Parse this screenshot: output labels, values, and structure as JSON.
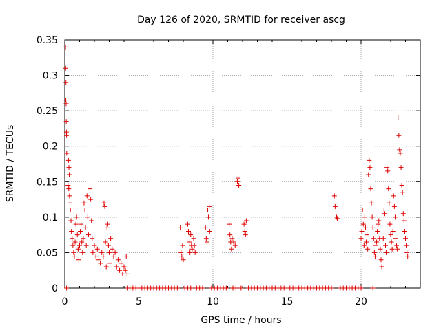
{
  "chart_data": {
    "type": "scatter",
    "title": "Day 126 of 2020, SRMTID for receiver ascg",
    "xlabel": "GPS time / hours",
    "ylabel": "SRMTID / TECUs",
    "xlim": [
      0,
      24
    ],
    "ylim": [
      0,
      0.35
    ],
    "x_ticks": [
      0,
      5,
      10,
      15,
      20
    ],
    "y_ticks": [
      0,
      0.05,
      0.1,
      0.15,
      0.2,
      0.25,
      0.3,
      0.35
    ],
    "x_tick_labels": [
      "0",
      "5",
      "10",
      "15",
      "20"
    ],
    "y_tick_labels": [
      "0",
      "0.05",
      "0.1",
      "0.15",
      "0.2",
      "0.25",
      "0.3",
      "0.35"
    ],
    "grid": true,
    "marker": "+",
    "color": "#dd0000",
    "series": [
      {
        "name": "SRMTID",
        "points": [
          [
            0.05,
            0.34
          ],
          [
            0.06,
            0.31
          ],
          [
            0.08,
            0.29
          ],
          [
            0.07,
            0.265
          ],
          [
            0.09,
            0.26
          ],
          [
            0.1,
            0.235
          ],
          [
            0.11,
            0.22
          ],
          [
            0.12,
            0.215
          ],
          [
            0.13,
            0.19
          ],
          [
            0.12,
            0.0
          ],
          [
            0.25,
            0.18
          ],
          [
            0.28,
            0.17
          ],
          [
            0.3,
            0.16
          ],
          [
            0.22,
            0.145
          ],
          [
            0.27,
            0.14
          ],
          [
            0.32,
            0.13
          ],
          [
            0.35,
            0.12
          ],
          [
            0.38,
            0.11
          ],
          [
            0.42,
            0.095
          ],
          [
            0.45,
            0.08
          ],
          [
            0.5,
            0.07
          ],
          [
            0.55,
            0.06
          ],
          [
            0.6,
            0.05
          ],
          [
            0.65,
            0.045
          ],
          [
            0.7,
            0.065
          ],
          [
            0.75,
            0.09
          ],
          [
            0.8,
            0.1
          ],
          [
            0.85,
            0.075
          ],
          [
            0.9,
            0.055
          ],
          [
            0.95,
            0.04
          ],
          [
            1.0,
            0.06
          ],
          [
            1.05,
            0.08
          ],
          [
            1.1,
            0.09
          ],
          [
            1.15,
            0.065
          ],
          [
            1.2,
            0.05
          ],
          [
            1.25,
            0.07
          ],
          [
            1.3,
            0.12
          ],
          [
            1.35,
            0.11
          ],
          [
            1.4,
            0.085
          ],
          [
            1.45,
            0.06
          ],
          [
            1.5,
            0.13
          ],
          [
            1.55,
            0.1
          ],
          [
            1.6,
            0.075
          ],
          [
            1.7,
            0.14
          ],
          [
            1.75,
            0.125
          ],
          [
            1.8,
            0.095
          ],
          [
            1.85,
            0.07
          ],
          [
            1.9,
            0.05
          ],
          [
            2.0,
            0.06
          ],
          [
            2.1,
            0.045
          ],
          [
            2.2,
            0.055
          ],
          [
            2.3,
            0.04
          ],
          [
            2.4,
            0.035
          ],
          [
            2.5,
            0.05
          ],
          [
            2.6,
            0.045
          ],
          [
            2.65,
            0.12
          ],
          [
            2.7,
            0.115
          ],
          [
            2.75,
            0.065
          ],
          [
            2.8,
            0.03
          ],
          [
            2.85,
            0.085
          ],
          [
            2.9,
            0.09
          ],
          [
            2.95,
            0.06
          ],
          [
            3.0,
            0.05
          ],
          [
            3.05,
            0.035
          ],
          [
            3.1,
            0.07
          ],
          [
            3.2,
            0.055
          ],
          [
            3.3,
            0.045
          ],
          [
            3.4,
            0.05
          ],
          [
            3.5,
            0.03
          ],
          [
            3.6,
            0.04
          ],
          [
            3.7,
            0.025
          ],
          [
            3.8,
            0.035
          ],
          [
            3.9,
            0.02
          ],
          [
            4.0,
            0.03
          ],
          [
            4.1,
            0.025
          ],
          [
            4.15,
            0.045
          ],
          [
            4.2,
            0.02
          ],
          [
            7.8,
            0.085
          ],
          [
            7.85,
            0.05
          ],
          [
            7.9,
            0.045
          ],
          [
            7.95,
            0.06
          ],
          [
            8.0,
            0.04
          ],
          [
            8.3,
            0.09
          ],
          [
            8.35,
            0.08
          ],
          [
            8.4,
            0.065
          ],
          [
            8.45,
            0.05
          ],
          [
            8.5,
            0.075
          ],
          [
            8.55,
            0.06
          ],
          [
            8.6,
            0.055
          ],
          [
            8.7,
            0.07
          ],
          [
            8.75,
            0.06
          ],
          [
            8.8,
            0.05
          ],
          [
            9.5,
            0.085
          ],
          [
            9.55,
            0.07
          ],
          [
            9.6,
            0.065
          ],
          [
            9.65,
            0.11
          ],
          [
            9.7,
            0.1
          ],
          [
            9.75,
            0.115
          ],
          [
            9.78,
            0.08
          ],
          [
            11.1,
            0.09
          ],
          [
            11.15,
            0.075
          ],
          [
            11.2,
            0.065
          ],
          [
            11.25,
            0.055
          ],
          [
            11.3,
            0.07
          ],
          [
            11.4,
            0.065
          ],
          [
            11.5,
            0.06
          ],
          [
            11.65,
            0.15
          ],
          [
            11.7,
            0.155
          ],
          [
            11.75,
            0.145
          ],
          [
            12.1,
            0.09
          ],
          [
            12.15,
            0.08
          ],
          [
            12.2,
            0.075
          ],
          [
            12.25,
            0.095
          ],
          [
            18.2,
            0.13
          ],
          [
            18.25,
            0.115
          ],
          [
            18.3,
            0.11
          ],
          [
            18.35,
            0.1
          ],
          [
            18.4,
            0.098
          ],
          [
            20.0,
            0.07
          ],
          [
            20.05,
            0.08
          ],
          [
            20.1,
            0.11
          ],
          [
            20.15,
            0.09
          ],
          [
            20.2,
            0.06
          ],
          [
            20.25,
            0.1
          ],
          [
            20.3,
            0.085
          ],
          [
            20.35,
            0.065
          ],
          [
            20.4,
            0.075
          ],
          [
            20.45,
            0.055
          ],
          [
            20.5,
            0.16
          ],
          [
            20.55,
            0.18
          ],
          [
            20.6,
            0.17
          ],
          [
            20.65,
            0.14
          ],
          [
            20.7,
            0.12
          ],
          [
            20.75,
            0.1
          ],
          [
            20.8,
            0.085
          ],
          [
            20.85,
            0.07
          ],
          [
            20.9,
            0.05
          ],
          [
            20.95,
            0.045
          ],
          [
            21.0,
            0.06
          ],
          [
            21.05,
            0.065
          ],
          [
            21.1,
            0.08
          ],
          [
            21.15,
            0.09
          ],
          [
            21.2,
            0.095
          ],
          [
            21.25,
            0.07
          ],
          [
            21.3,
            0.055
          ],
          [
            21.35,
            0.04
          ],
          [
            21.4,
            0.03
          ],
          [
            21.5,
            0.07
          ],
          [
            21.55,
            0.11
          ],
          [
            21.6,
            0.105
          ],
          [
            21.65,
            0.06
          ],
          [
            21.7,
            0.05
          ],
          [
            21.75,
            0.17
          ],
          [
            21.8,
            0.165
          ],
          [
            21.85,
            0.14
          ],
          [
            21.9,
            0.12
          ],
          [
            21.95,
            0.09
          ],
          [
            22.0,
            0.075
          ],
          [
            22.05,
            0.065
          ],
          [
            22.1,
            0.055
          ],
          [
            22.15,
            0.08
          ],
          [
            22.2,
            0.13
          ],
          [
            22.25,
            0.115
          ],
          [
            22.3,
            0.1
          ],
          [
            22.35,
            0.07
          ],
          [
            22.4,
            0.06
          ],
          [
            22.45,
            0.055
          ],
          [
            22.5,
            0.24
          ],
          [
            22.55,
            0.215
          ],
          [
            22.6,
            0.195
          ],
          [
            22.65,
            0.19
          ],
          [
            22.7,
            0.17
          ],
          [
            22.75,
            0.145
          ],
          [
            22.8,
            0.135
          ],
          [
            22.85,
            0.105
          ],
          [
            22.9,
            0.095
          ],
          [
            22.95,
            0.08
          ],
          [
            23.0,
            0.07
          ],
          [
            23.05,
            0.06
          ],
          [
            23.1,
            0.05
          ],
          [
            23.15,
            0.045
          ],
          [
            4.25,
            0.0
          ],
          [
            4.4,
            0.0
          ],
          [
            4.6,
            0.0
          ],
          [
            4.8,
            0.0
          ],
          [
            5.0,
            0.0
          ],
          [
            5.2,
            0.0
          ],
          [
            5.4,
            0.0
          ],
          [
            5.6,
            0.0
          ],
          [
            5.8,
            0.0
          ],
          [
            6.0,
            0.0
          ],
          [
            6.2,
            0.0
          ],
          [
            6.4,
            0.0
          ],
          [
            6.6,
            0.0
          ],
          [
            6.8,
            0.0
          ],
          [
            7.0,
            0.0
          ],
          [
            7.2,
            0.0
          ],
          [
            7.4,
            0.0
          ],
          [
            7.6,
            0.0
          ],
          [
            8.1,
            0.0
          ],
          [
            8.3,
            0.0
          ],
          [
            8.5,
            0.0
          ],
          [
            8.9,
            0.0
          ],
          [
            9.1,
            0.0
          ],
          [
            9.3,
            0.0
          ],
          [
            9.9,
            0.0
          ],
          [
            10.1,
            0.0
          ],
          [
            10.3,
            0.0
          ],
          [
            10.5,
            0.0
          ],
          [
            10.7,
            0.0
          ],
          [
            10.9,
            0.0
          ],
          [
            11.35,
            0.0
          ],
          [
            11.55,
            0.0
          ],
          [
            11.9,
            0.0
          ],
          [
            12.4,
            0.0
          ],
          [
            12.6,
            0.0
          ],
          [
            12.8,
            0.0
          ],
          [
            13.0,
            0.0
          ],
          [
            13.2,
            0.0
          ],
          [
            13.4,
            0.0
          ],
          [
            13.6,
            0.0
          ],
          [
            13.8,
            0.0
          ],
          [
            14.0,
            0.0
          ],
          [
            14.2,
            0.0
          ],
          [
            14.4,
            0.0
          ],
          [
            14.6,
            0.0
          ],
          [
            14.8,
            0.0
          ],
          [
            15.0,
            0.0
          ],
          [
            15.2,
            0.0
          ],
          [
            15.4,
            0.0
          ],
          [
            15.6,
            0.0
          ],
          [
            15.8,
            0.0
          ],
          [
            16.0,
            0.0
          ],
          [
            16.2,
            0.0
          ],
          [
            16.4,
            0.0
          ],
          [
            16.6,
            0.0
          ],
          [
            16.8,
            0.0
          ],
          [
            17.0,
            0.0
          ],
          [
            17.2,
            0.0
          ],
          [
            17.4,
            0.0
          ],
          [
            17.6,
            0.0
          ],
          [
            17.8,
            0.0
          ],
          [
            18.0,
            0.0
          ],
          [
            18.6,
            0.0
          ],
          [
            18.8,
            0.0
          ],
          [
            19.0,
            0.0
          ],
          [
            19.2,
            0.0
          ],
          [
            19.4,
            0.0
          ],
          [
            19.6,
            0.0
          ],
          [
            19.8,
            0.0
          ],
          [
            20.0,
            0.0
          ],
          [
            20.8,
            0.0
          ]
        ]
      }
    ]
  }
}
